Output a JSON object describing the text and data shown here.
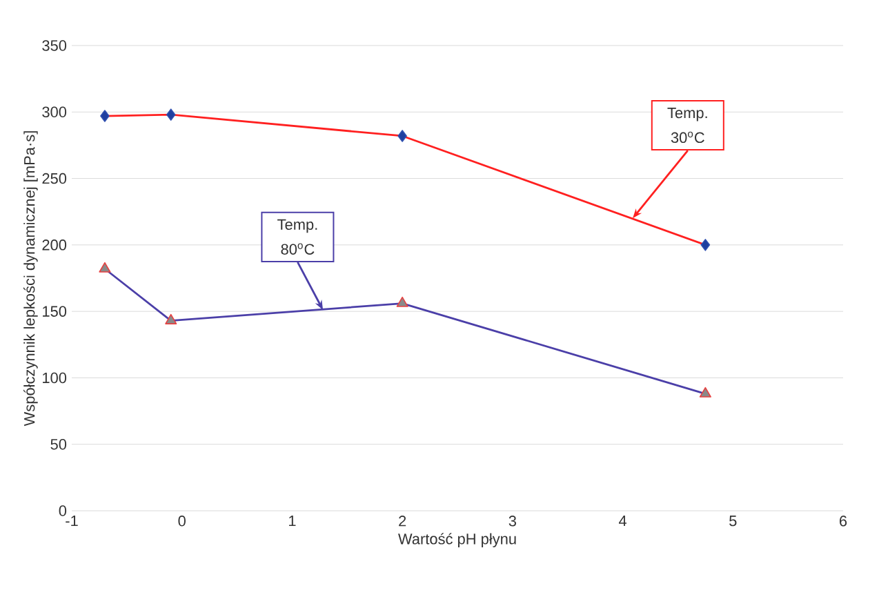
{
  "chart_data": {
    "type": "line",
    "xlabel": "Wartość pH płynu",
    "ylabel": "Współczynnik lepkości dynamicznej  [mPa·s]",
    "xlim": [
      -1,
      6
    ],
    "xticks": [
      -1,
      0,
      1,
      2,
      3,
      4,
      5,
      6
    ],
    "ylim": [
      0,
      350
    ],
    "yticks": [
      0,
      50,
      100,
      150,
      200,
      250,
      300,
      350
    ],
    "grid": "y",
    "line_style": "solid",
    "series": [
      {
        "color": "#ff2020",
        "marker": "diamond",
        "x": [
          -0.7,
          -0.1,
          2.0,
          4.75
        ],
        "values": [
          297,
          298,
          282,
          200
        ]
      },
      {
        "color": "#4b3fa8",
        "marker": "triangle",
        "x": [
          -0.7,
          -0.1,
          2.0,
          4.75
        ],
        "values": [
          182,
          143,
          156,
          88
        ]
      }
    ],
    "annotations": [
      {
        "text": "Temp. 30$^{o}$C",
        "x": 4.09,
        "y": 220
      },
      {
        "text": "Temp. 80$^{o}$C",
        "x": 1.28,
        "y": 151
      }
    ]
  }
}
